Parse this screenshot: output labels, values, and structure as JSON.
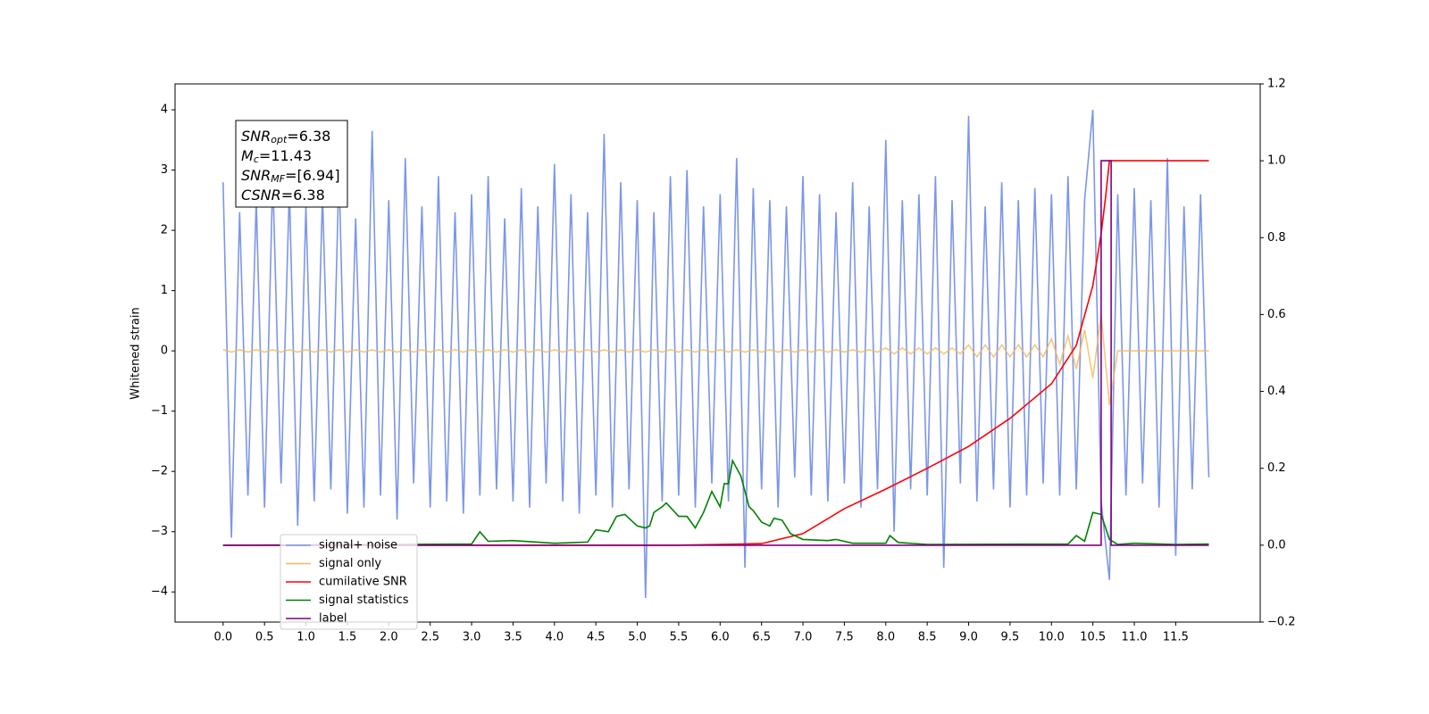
{
  "chart_data": {
    "type": "line",
    "ylabel": "Whitened strain",
    "xlim": [
      -0.58,
      12.52
    ],
    "ylim": [
      -4.5,
      4.43
    ],
    "y2lim": [
      -0.2,
      1.2
    ],
    "xticks": [
      {
        "value": 0,
        "label": "0.0"
      },
      0.5,
      {
        "value": 1,
        "label": "1.0"
      },
      1.5,
      {
        "value": 2,
        "label": "2.0"
      },
      2.5,
      {
        "value": 3,
        "label": "3.0"
      },
      3.5,
      {
        "value": 4,
        "label": "4.0"
      },
      4.5,
      {
        "value": 5,
        "label": "5.0"
      },
      5.5,
      {
        "value": 6,
        "label": "6.0"
      },
      6.5,
      {
        "value": 7,
        "label": "7.0"
      },
      7.5,
      {
        "value": 8,
        "label": "8.0"
      },
      8.5,
      {
        "value": 9,
        "label": "9.0"
      },
      9.5,
      {
        "value": 10,
        "label": "10.0"
      },
      10.5,
      {
        "value": 11,
        "label": "11.0"
      },
      11.5
    ],
    "yticks": [
      {
        "value": -4,
        "label": "−4"
      },
      {
        "value": -3,
        "label": "−3"
      },
      {
        "value": -2,
        "label": "−2"
      },
      {
        "value": -1,
        "label": "−1"
      },
      0,
      1,
      2,
      3,
      4
    ],
    "y2ticks": [
      {
        "value": -0.2,
        "label": "−0.2"
      },
      {
        "value": 0,
        "label": "0.0"
      },
      0.2,
      0.4,
      0.6,
      0.8,
      {
        "value": 1,
        "label": "1.0"
      },
      1.2
    ],
    "legend": "lower left",
    "annotation": [
      {
        "base": "SNR",
        "sub": "opt",
        "rest": "=6.38"
      },
      {
        "base": "M",
        "sub": "c",
        "rest": "=11.43"
      },
      {
        "base": "SNR",
        "sub": "MF",
        "rest": "=[6.94]"
      },
      {
        "base": "CSNR",
        "sub": "",
        "rest": "=6.38"
      }
    ],
    "x": [
      0,
      0.1,
      0.2,
      0.3,
      0.4,
      0.5,
      0.6,
      0.7,
      0.8,
      0.9,
      1,
      1.1,
      1.2,
      1.3,
      1.4,
      1.5,
      1.6,
      1.7,
      1.8,
      1.9,
      2,
      2.1,
      2.2,
      2.3,
      2.4,
      2.5,
      2.6,
      2.7,
      2.8,
      2.9,
      3,
      3.1,
      3.2,
      3.3,
      3.4,
      3.5,
      3.6,
      3.7,
      3.8,
      3.9,
      4,
      4.1,
      4.2,
      4.3,
      4.4,
      4.5,
      4.6,
      4.7,
      4.8,
      4.9,
      5,
      5.1,
      5.2,
      5.3,
      5.4,
      5.5,
      5.6,
      5.7,
      5.8,
      5.9,
      6,
      6.1,
      6.2,
      6.3,
      6.4,
      6.5,
      6.6,
      6.7,
      6.8,
      6.9,
      7,
      7.1,
      7.2,
      7.3,
      7.4,
      7.5,
      7.6,
      7.7,
      7.8,
      7.9,
      8,
      8.1,
      8.2,
      8.3,
      8.4,
      8.5,
      8.6,
      8.7,
      8.8,
      8.9,
      9,
      9.1,
      9.2,
      9.3,
      9.4,
      9.5,
      9.6,
      9.7,
      9.8,
      9.9,
      10,
      10.1,
      10.2,
      10.3,
      10.4,
      10.5,
      10.6,
      10.7,
      10.8,
      10.9,
      11,
      11.1,
      11.2,
      11.3,
      11.4,
      11.5,
      11.6,
      11.7,
      11.8,
      11.9
    ],
    "series": [
      {
        "name": "signal+ noise",
        "color": "#7b96e8",
        "values": [
          2.8,
          -3.1,
          2.3,
          -2.4,
          2.5,
          -2.6,
          2.9,
          -2.2,
          2.7,
          -2.9,
          2.4,
          -2.5,
          2.6,
          -2.3,
          3.0,
          -2.7,
          2.2,
          -2.6,
          3.65,
          -2.4,
          2.5,
          -2.8,
          3.2,
          -2.2,
          2.4,
          -2.6,
          2.9,
          -2.5,
          2.3,
          -2.7,
          2.6,
          -2.4,
          2.9,
          -2.3,
          2.2,
          -2.5,
          2.7,
          -2.6,
          2.4,
          -2.2,
          3.1,
          -2.5,
          2.6,
          -2.7,
          2.3,
          -2.4,
          3.6,
          -2.6,
          2.8,
          -2.3,
          2.5,
          -4.1,
          2.3,
          -2.5,
          2.9,
          -2.4,
          3.0,
          -2.6,
          2.4,
          -2.2,
          2.6,
          -2.5,
          3.2,
          -3.6,
          2.7,
          -2.3,
          2.5,
          -2.6,
          2.4,
          -2.1,
          2.9,
          -2.4,
          2.6,
          -2.5,
          2.3,
          -2.2,
          2.8,
          -2.6,
          2.4,
          -2.3,
          3.5,
          -3.0,
          2.5,
          -2.3,
          2.6,
          -2.4,
          2.9,
          -3.6,
          2.5,
          -2.2,
          3.9,
          -2.5,
          2.4,
          -2.3,
          2.8,
          -2.6,
          2.5,
          -2.4,
          2.7,
          -2.2,
          2.6,
          -2.4,
          2.9,
          -2.3,
          2.5,
          4.0,
          -2.5,
          -3.8,
          2.6,
          -2.4,
          2.7,
          -2.2,
          2.5,
          -2.6,
          3.2,
          -3.4,
          2.4,
          -2.3,
          2.6,
          -2.1
        ]
      },
      {
        "name": "signal only",
        "color": "#f5b85a",
        "values": [
          0.02,
          -0.02,
          0.02,
          -0.02,
          0.02,
          -0.02,
          0.02,
          -0.02,
          0.02,
          -0.02,
          0.02,
          -0.02,
          0.02,
          -0.02,
          0.02,
          -0.02,
          0.02,
          -0.02,
          0.02,
          -0.02,
          0.02,
          -0.02,
          0.02,
          -0.02,
          0.02,
          -0.02,
          0.02,
          -0.02,
          0.02,
          -0.02,
          0.02,
          -0.02,
          0.02,
          -0.02,
          0.02,
          -0.02,
          0.02,
          -0.02,
          0.02,
          -0.02,
          0.02,
          -0.02,
          0.02,
          -0.02,
          0.02,
          -0.02,
          0.02,
          -0.02,
          0.02,
          -0.02,
          0.02,
          -0.02,
          0.02,
          -0.02,
          0.02,
          -0.02,
          0.02,
          -0.02,
          0.02,
          -0.02,
          0.02,
          -0.02,
          0.02,
          -0.02,
          0.02,
          -0.02,
          0.02,
          -0.02,
          0.02,
          -0.02,
          0.02,
          -0.02,
          0.02,
          -0.02,
          0.02,
          -0.02,
          0.02,
          -0.02,
          0.02,
          -0.02,
          0.05,
          -0.05,
          0.05,
          -0.05,
          0.05,
          -0.05,
          0.05,
          -0.05,
          0.05,
          -0.05,
          0.1,
          -0.1,
          0.1,
          -0.1,
          0.1,
          -0.1,
          0.1,
          -0.1,
          0.1,
          -0.1,
          0.2,
          -0.22,
          0.25,
          -0.3,
          0.35,
          -0.45,
          0.6,
          -0.9,
          0,
          0,
          0,
          0,
          0,
          0,
          0,
          0,
          0,
          0,
          0,
          0
        ]
      },
      {
        "name": "cumilative SNR",
        "color": "#ff0000",
        "axis": "y2",
        "x": [
          0,
          5.5,
          6.0,
          6.5,
          7.0,
          7.5,
          8.0,
          8.5,
          9.0,
          9.5,
          10.0,
          10.3,
          10.5,
          10.6,
          10.65,
          10.7,
          11.9
        ],
        "values": [
          0,
          0,
          0.002,
          0.004,
          0.03,
          0.095,
          0.146,
          0.2,
          0.257,
          0.33,
          0.42,
          0.52,
          0.675,
          0.81,
          0.9,
          1.0,
          1.0
        ]
      },
      {
        "name": "signal statistics",
        "color": "#008000",
        "axis": "y2",
        "x": [
          0,
          3.0,
          3.1,
          3.2,
          3.5,
          4.0,
          4.4,
          4.5,
          4.65,
          4.75,
          4.85,
          5.0,
          5.1,
          5.15,
          5.2,
          5.3,
          5.35,
          5.5,
          5.6,
          5.7,
          5.8,
          5.9,
          6.0,
          6.05,
          6.1,
          6.15,
          6.25,
          6.35,
          6.4,
          6.5,
          6.6,
          6.65,
          6.75,
          6.85,
          7.0,
          7.3,
          7.4,
          7.6,
          8.0,
          8.05,
          8.15,
          8.5,
          10.2,
          10.3,
          10.4,
          10.5,
          10.6,
          10.7,
          10.8,
          11.0,
          11.5,
          11.9
        ],
        "values": [
          0,
          0.003,
          0.035,
          0.01,
          0.012,
          0.005,
          0.008,
          0.04,
          0.035,
          0.075,
          0.08,
          0.05,
          0.045,
          0.05,
          0.085,
          0.1,
          0.11,
          0.075,
          0.075,
          0.045,
          0.085,
          0.14,
          0.1,
          0.16,
          0.16,
          0.22,
          0.18,
          0.1,
          0.09,
          0.06,
          0.05,
          0.07,
          0.065,
          0.03,
          0.015,
          0.012,
          0.015,
          0.005,
          0.005,
          0.025,
          0.007,
          0.002,
          0.003,
          0.025,
          0.01,
          0.085,
          0.08,
          0.015,
          0.002,
          0.005,
          0.002,
          0.003
        ]
      },
      {
        "name": "label",
        "color": "#800080",
        "axis": "y2",
        "x": [
          0,
          10.6,
          10.6,
          10.72,
          10.72,
          11.9
        ],
        "values": [
          0,
          0,
          1,
          1,
          0,
          0
        ]
      }
    ]
  }
}
